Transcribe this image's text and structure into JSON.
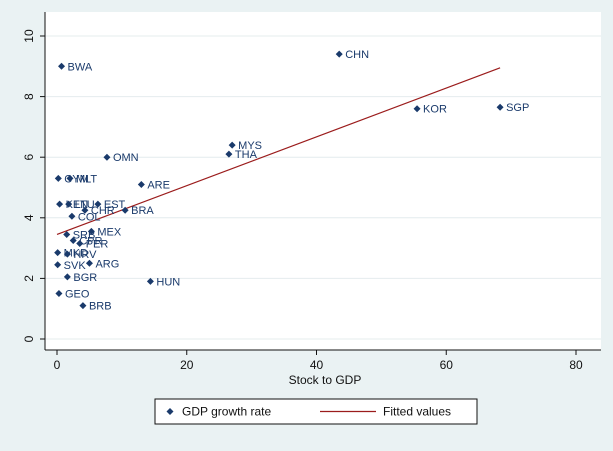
{
  "chart_data": {
    "type": "scatter",
    "xlabel": "Stock to GDP",
    "ylabel": "",
    "xlim": [
      0,
      80
    ],
    "ylim": [
      0,
      10
    ],
    "x_ticks": [
      0,
      20,
      40,
      60,
      80
    ],
    "y_ticks": [
      0,
      2,
      4,
      6,
      8,
      10
    ],
    "grid": "horizontal",
    "legend_position": "bottom",
    "colors": {
      "marker": "#1a3a6b",
      "fit_line": "#9b1c1c",
      "plot_bg": "#ffffff",
      "outer_bg": "#eaf2f3"
    },
    "series": [
      {
        "name": "GDP growth rate",
        "type": "scatter",
        "points": [
          {
            "label": "CHN",
            "x": 43.5,
            "y": 9.4
          },
          {
            "label": "BWA",
            "x": 0.7,
            "y": 9.0
          },
          {
            "label": "KOR",
            "x": 55.5,
            "y": 7.6
          },
          {
            "label": "SGP",
            "x": 68.3,
            "y": 7.65
          },
          {
            "label": "MYS",
            "x": 27.0,
            "y": 6.4
          },
          {
            "label": "THA",
            "x": 26.5,
            "y": 6.1
          },
          {
            "label": "OMN",
            "x": 7.7,
            "y": 6.0
          },
          {
            "label": "MLT",
            "x": 2.0,
            "y": 5.3
          },
          {
            "label": "CYM",
            "x": 0.2,
            "y": 5.3
          },
          {
            "label": "ARE",
            "x": 13.0,
            "y": 5.1
          },
          {
            "label": "EST",
            "x": 6.3,
            "y": 4.45
          },
          {
            "label": "LTU",
            "x": 1.8,
            "y": 4.45
          },
          {
            "label": "KEN",
            "x": 0.4,
            "y": 4.45
          },
          {
            "label": "CHR",
            "x": 4.3,
            "y": 4.25
          },
          {
            "label": "BRA",
            "x": 10.5,
            "y": 4.25
          },
          {
            "label": "COL",
            "x": 2.3,
            "y": 4.05
          },
          {
            "label": "MEX",
            "x": 5.3,
            "y": 3.55
          },
          {
            "label": "SRB",
            "x": 1.5,
            "y": 3.45
          },
          {
            "label": "PER",
            "x": 3.5,
            "y": 3.15
          },
          {
            "label": "CPR",
            "x": 2.5,
            "y": 3.25
          },
          {
            "label": "HRV",
            "x": 1.6,
            "y": 2.8
          },
          {
            "label": "MKD",
            "x": 0.1,
            "y": 2.85
          },
          {
            "label": "ARG",
            "x": 5.0,
            "y": 2.5
          },
          {
            "label": "SVK",
            "x": 0.1,
            "y": 2.45
          },
          {
            "label": "BGR",
            "x": 1.6,
            "y": 2.05
          },
          {
            "label": "HUN",
            "x": 14.4,
            "y": 1.9
          },
          {
            "label": "GEO",
            "x": 0.3,
            "y": 1.5
          },
          {
            "label": "BRB",
            "x": 4.0,
            "y": 1.1
          }
        ]
      },
      {
        "name": "Fitted values",
        "type": "line",
        "x": [
          0,
          68.3
        ],
        "y": [
          3.45,
          8.95
        ]
      }
    ]
  }
}
